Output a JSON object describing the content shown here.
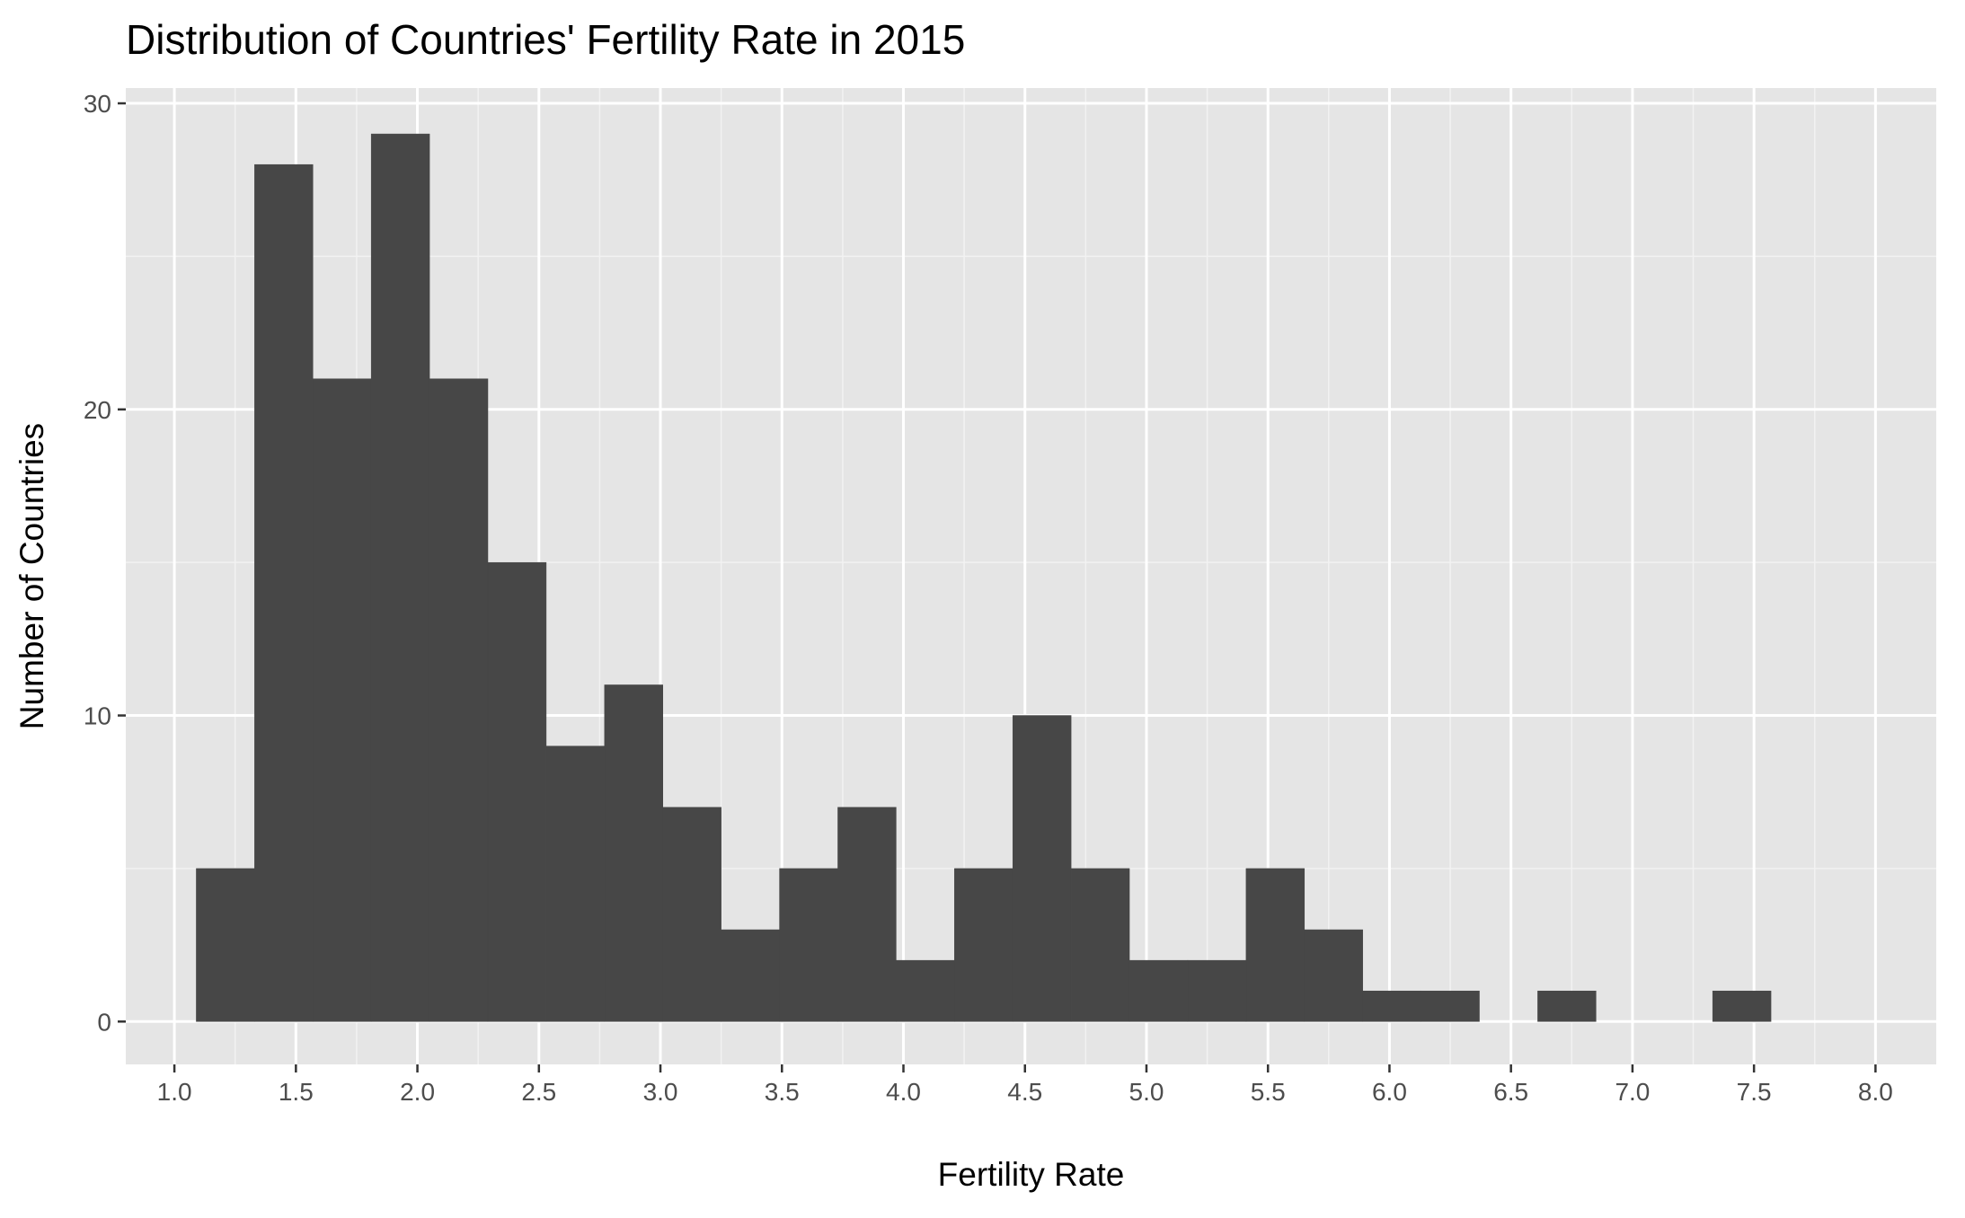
{
  "chart_data": {
    "type": "bar",
    "subtype": "histogram",
    "title": "Distribution of Countries' Fertility Rate in 2015",
    "xlabel": "Fertility Rate",
    "ylabel": "Number of Countries",
    "xlim": [
      0.8,
      8.25
    ],
    "ylim": [
      -1.4,
      30.5
    ],
    "x_ticks": [
      "1.0",
      "1.5",
      "2.0",
      "2.5",
      "3.0",
      "3.5",
      "4.0",
      "4.5",
      "5.0",
      "5.5",
      "6.0",
      "6.5",
      "7.0",
      "7.5",
      "8.0"
    ],
    "y_ticks": [
      "0",
      "10",
      "20",
      "30"
    ],
    "grid": true,
    "background": "#e5e5e5",
    "bar_color": "#474747",
    "bins": [
      {
        "x0": 1.09,
        "x1": 1.33,
        "count": 5
      },
      {
        "x0": 1.33,
        "x1": 1.57,
        "count": 28
      },
      {
        "x0": 1.57,
        "x1": 1.81,
        "count": 21
      },
      {
        "x0": 1.81,
        "x1": 2.05,
        "count": 29
      },
      {
        "x0": 2.05,
        "x1": 2.29,
        "count": 21
      },
      {
        "x0": 2.29,
        "x1": 2.53,
        "count": 15
      },
      {
        "x0": 2.53,
        "x1": 2.77,
        "count": 9
      },
      {
        "x0": 2.77,
        "x1": 3.01,
        "count": 11
      },
      {
        "x0": 3.01,
        "x1": 3.25,
        "count": 7
      },
      {
        "x0": 3.25,
        "x1": 3.49,
        "count": 3
      },
      {
        "x0": 3.49,
        "x1": 3.73,
        "count": 5
      },
      {
        "x0": 3.73,
        "x1": 3.97,
        "count": 7
      },
      {
        "x0": 3.97,
        "x1": 4.21,
        "count": 2
      },
      {
        "x0": 4.21,
        "x1": 4.45,
        "count": 5
      },
      {
        "x0": 4.45,
        "x1": 4.69,
        "count": 10
      },
      {
        "x0": 4.69,
        "x1": 4.93,
        "count": 5
      },
      {
        "x0": 4.93,
        "x1": 5.17,
        "count": 2
      },
      {
        "x0": 5.17,
        "x1": 5.41,
        "count": 2
      },
      {
        "x0": 5.41,
        "x1": 5.65,
        "count": 5
      },
      {
        "x0": 5.65,
        "x1": 5.89,
        "count": 3
      },
      {
        "x0": 5.89,
        "x1": 6.13,
        "count": 1
      },
      {
        "x0": 6.13,
        "x1": 6.37,
        "count": 1
      },
      {
        "x0": 6.37,
        "x1": 6.61,
        "count": 0
      },
      {
        "x0": 6.61,
        "x1": 6.85,
        "count": 1
      },
      {
        "x0": 6.85,
        "x1": 7.09,
        "count": 0
      },
      {
        "x0": 7.09,
        "x1": 7.33,
        "count": 0
      },
      {
        "x0": 7.33,
        "x1": 7.57,
        "count": 1
      }
    ]
  }
}
